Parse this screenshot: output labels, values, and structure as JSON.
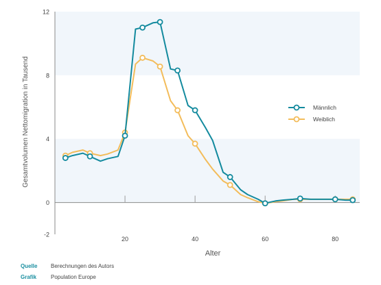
{
  "chart_data": {
    "type": "line",
    "xlabel": "Alter",
    "ylabel": "Gesamtvolumen Nettomigration in Tausend",
    "xlim": [
      0,
      87
    ],
    "ylim": [
      -2,
      12
    ],
    "xticks": [
      20,
      40,
      60,
      80
    ],
    "yticks": [
      -2,
      0,
      4,
      8,
      12
    ],
    "legend_position": "right",
    "series": [
      {
        "name": "Männlich",
        "color": "#138a9e",
        "x": [
          3,
          5,
          8,
          10,
          13,
          15,
          18,
          20,
          23,
          25,
          28,
          30,
          33,
          35,
          38,
          40,
          43,
          45,
          48,
          50,
          53,
          55,
          58,
          60,
          63,
          65,
          68,
          70,
          73,
          75,
          78,
          80,
          83,
          85
        ],
        "y": [
          2.8,
          2.95,
          3.1,
          2.9,
          2.6,
          2.75,
          2.9,
          4.2,
          10.9,
          11.0,
          11.3,
          11.35,
          8.4,
          8.3,
          6.1,
          5.8,
          4.7,
          3.9,
          1.9,
          1.6,
          0.8,
          0.5,
          0.2,
          -0.05,
          0.1,
          0.15,
          0.2,
          0.25,
          0.2,
          0.2,
          0.2,
          0.2,
          0.15,
          0.15
        ],
        "markers_x": [
          3,
          10,
          20,
          25,
          30,
          35,
          40,
          50,
          60,
          70,
          80,
          85
        ]
      },
      {
        "name": "Weiblich",
        "color": "#f3bc5a",
        "x": [
          3,
          5,
          8,
          10,
          13,
          15,
          18,
          20,
          23,
          25,
          28,
          30,
          33,
          35,
          38,
          40,
          43,
          45,
          48,
          50,
          53,
          55,
          58,
          60,
          63,
          65,
          68,
          70,
          73,
          75,
          78,
          80,
          83,
          85
        ],
        "y": [
          2.95,
          3.15,
          3.3,
          3.1,
          2.95,
          3.05,
          3.3,
          4.4,
          8.7,
          9.1,
          8.9,
          8.55,
          6.4,
          5.8,
          4.2,
          3.7,
          2.7,
          2.1,
          1.35,
          1.1,
          0.5,
          0.3,
          0.05,
          -0.05,
          0.05,
          0.1,
          0.2,
          0.2,
          0.2,
          0.2,
          0.2,
          0.2,
          0.2,
          0.2
        ],
        "markers_x": [
          3,
          10,
          20,
          25,
          30,
          35,
          40,
          50,
          60,
          70,
          80,
          85
        ]
      }
    ]
  },
  "footer": {
    "source_key": "Quelle",
    "source_value": "Berechnungen des Autors",
    "graphic_key": "Grafik",
    "graphic_value": "Population Europe"
  }
}
